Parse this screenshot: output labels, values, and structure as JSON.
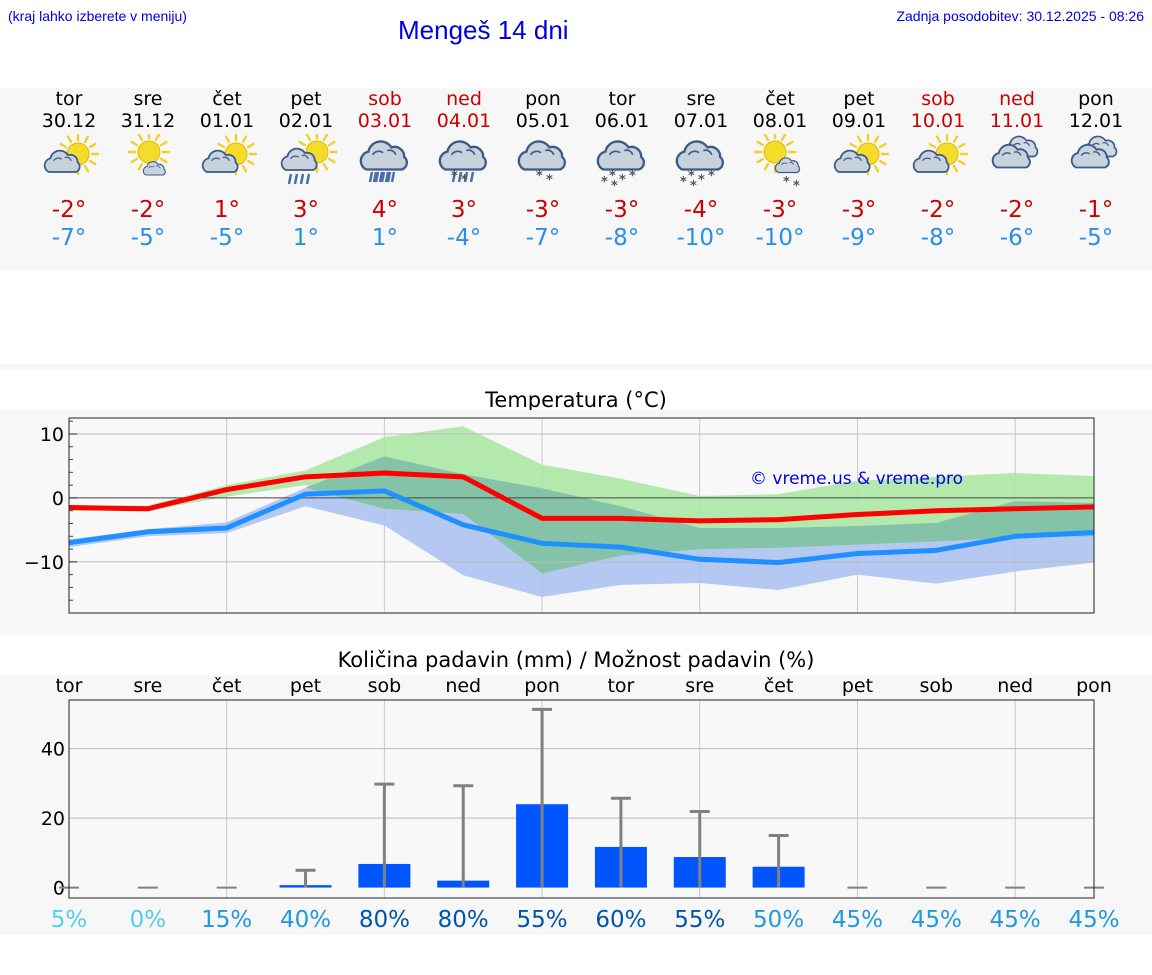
{
  "header": {
    "hint": "(kraj lahko izberete v meniju)",
    "title": "Mengeš 14 dni",
    "updated": "Zadnja posodobitev: 30.12.2025 - 08:26"
  },
  "days": [
    {
      "name": "tor",
      "date": "30.12",
      "weekend": false,
      "icon": "partly-cloudy-icon",
      "tmax": "-2°",
      "tmin": "-7°"
    },
    {
      "name": "sre",
      "date": "31.12",
      "weekend": false,
      "icon": "sun-small-cloud-icon",
      "tmax": "-2°",
      "tmin": "-5°"
    },
    {
      "name": "čet",
      "date": "01.01",
      "weekend": false,
      "icon": "partly-cloudy-icon",
      "tmax": "1°",
      "tmin": "-5°"
    },
    {
      "name": "pet",
      "date": "02.01",
      "weekend": false,
      "icon": "partly-cloudy-rain-icon",
      "tmax": "3°",
      "tmin": "1°"
    },
    {
      "name": "sob",
      "date": "03.01",
      "weekend": true,
      "icon": "cloud-rain-icon",
      "tmax": "4°",
      "tmin": "1°"
    },
    {
      "name": "ned",
      "date": "04.01",
      "weekend": true,
      "icon": "cloud-sleet-icon",
      "tmax": "3°",
      "tmin": "-4°"
    },
    {
      "name": "pon",
      "date": "05.01",
      "weekend": false,
      "icon": "cloud-light-snow-icon",
      "tmax": "-3°",
      "tmin": "-7°"
    },
    {
      "name": "tor",
      "date": "06.01",
      "weekend": false,
      "icon": "cloud-snow-icon",
      "tmax": "-3°",
      "tmin": "-8°"
    },
    {
      "name": "sre",
      "date": "07.01",
      "weekend": false,
      "icon": "cloud-snow-icon",
      "tmax": "-4°",
      "tmin": "-10°"
    },
    {
      "name": "čet",
      "date": "08.01",
      "weekend": false,
      "icon": "sun-cloud-snow-icon",
      "tmax": "-3°",
      "tmin": "-10°"
    },
    {
      "name": "pet",
      "date": "09.01",
      "weekend": false,
      "icon": "partly-cloudy-icon",
      "tmax": "-3°",
      "tmin": "-9°"
    },
    {
      "name": "sob",
      "date": "10.01",
      "weekend": true,
      "icon": "partly-cloudy-icon",
      "tmax": "-2°",
      "tmin": "-8°"
    },
    {
      "name": "ned",
      "date": "11.01",
      "weekend": true,
      "icon": "cloudy-icon",
      "tmax": "-2°",
      "tmin": "-6°"
    },
    {
      "name": "pon",
      "date": "12.01",
      "weekend": false,
      "icon": "cloudy-icon",
      "tmax": "-1°",
      "tmin": "-5°"
    }
  ],
  "colors": {
    "tmax": "#cc0000",
    "tmin": "#2a8ee6",
    "weekend": "#cc0000",
    "line_max": "#ff0000",
    "line_min": "#1e90ff",
    "band_max": "#a8e6a0",
    "band_min": "#a9bff0",
    "band_overlap": "#7fc0a6",
    "precip_bar": "#0055ff",
    "whisker": "#808080",
    "link": "#0000dd"
  },
  "chart_data": [
    {
      "type": "line",
      "title": "Temperatura (°C)",
      "watermark": "© vreme.us & vreme.pro",
      "ylim": [
        -18,
        12.5
      ],
      "yticks": [
        10,
        0,
        -10
      ],
      "ytick_labels": [
        "10",
        "0",
        "−10"
      ],
      "x": [
        0,
        1,
        2,
        3,
        4,
        5,
        6,
        7,
        8,
        9,
        10,
        11,
        12,
        13
      ],
      "series": [
        {
          "name": "max",
          "values": [
            -1.5,
            -1.7,
            1.3,
            3.3,
            3.9,
            3.3,
            -3.2,
            -3.2,
            -3.6,
            -3.4,
            -2.6,
            -2.0,
            -1.7,
            -1.4
          ]
        },
        {
          "name": "min",
          "values": [
            -7.0,
            -5.3,
            -4.7,
            0.6,
            1.1,
            -4.2,
            -7.1,
            -7.7,
            -9.6,
            -10.1,
            -8.7,
            -8.2,
            -6.0,
            -5.4
          ]
        },
        {
          "name": "max-range-high",
          "values": [
            -1.2,
            -1.2,
            2.0,
            4.3,
            9.5,
            11.2,
            5.2,
            3.0,
            0.3,
            0.6,
            2.7,
            3.3,
            3.9,
            3.4
          ]
        },
        {
          "name": "max-range-low",
          "values": [
            -2.0,
            -2.0,
            0.2,
            2.0,
            -1.7,
            -2.5,
            -11.8,
            -9.0,
            -8.0,
            -7.8,
            -7.3,
            -6.8,
            -6.2,
            -6.0
          ]
        },
        {
          "name": "min-range-high",
          "values": [
            -6.5,
            -4.9,
            -3.8,
            1.6,
            6.5,
            3.7,
            1.5,
            -1.3,
            -4.7,
            -4.7,
            -4.4,
            -3.9,
            -0.5,
            -0.8
          ]
        },
        {
          "name": "min-range-low",
          "values": [
            -7.7,
            -6.0,
            -5.5,
            -1.3,
            -4.3,
            -12.1,
            -15.5,
            -13.6,
            -13.3,
            -14.4,
            -12.0,
            -13.4,
            -11.5,
            -10.1
          ]
        }
      ]
    },
    {
      "type": "bar",
      "title": "Količina padavin (mm) / Možnost padavin (%)",
      "categories": [
        "tor",
        "sre",
        "čet",
        "pet",
        "sob",
        "ned",
        "pon",
        "tor",
        "sre",
        "čet",
        "pet",
        "sob",
        "ned",
        "pon"
      ],
      "ylim": [
        -3,
        54
      ],
      "yticks": [
        40,
        20,
        0
      ],
      "ytick_labels": [
        "40",
        "20",
        "0"
      ],
      "values": [
        0,
        0,
        0,
        0.7,
        6.8,
        2.0,
        24.0,
        11.7,
        8.8,
        6.0,
        0,
        0,
        0,
        0
      ],
      "error_high": [
        0,
        0,
        0,
        5.0,
        29.8,
        29.3,
        51.3,
        25.7,
        21.9,
        15.0,
        0,
        0,
        0,
        0
      ],
      "chance_labels": [
        "5%",
        "0%",
        "15%",
        "40%",
        "80%",
        "80%",
        "55%",
        "60%",
        "55%",
        "50%",
        "45%",
        "45%",
        "45%",
        "45%"
      ],
      "chance_colors": [
        "#55ccee",
        "#55ccee",
        "#2299dd",
        "#2299dd",
        "#0055aa",
        "#0055aa",
        "#0055aa",
        "#0055aa",
        "#0055aa",
        "#2299dd",
        "#2299dd",
        "#2299dd",
        "#2299dd",
        "#2299dd"
      ]
    }
  ]
}
